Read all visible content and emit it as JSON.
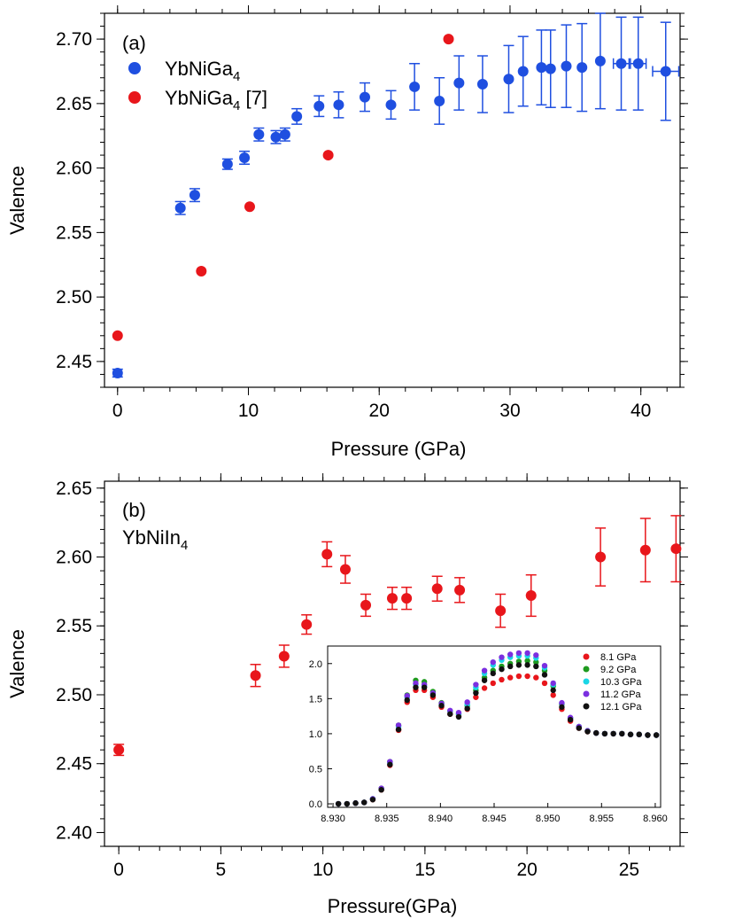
{
  "chart_data": [
    {
      "panel": "a",
      "type": "scatter",
      "panel_label": "(a)",
      "xlabel": "Pressure (GPa)",
      "ylabel": "Valence",
      "xlim": [
        -1,
        43
      ],
      "ylim": [
        2.43,
        2.72
      ],
      "xticks": [
        0,
        10,
        20,
        30,
        40
      ],
      "xtick_labels": [
        "0",
        "10",
        "20",
        "30",
        "40"
      ],
      "yticks": [
        2.45,
        2.5,
        2.55,
        2.6,
        2.65,
        2.7
      ],
      "ytick_labels": [
        "2.45",
        "2.50",
        "2.55",
        "2.60",
        "2.65",
        "2.70"
      ],
      "legend_position": "top-left",
      "series": [
        {
          "name": "YbNiGa",
          "sub": "4",
          "suffix": "",
          "color": "#1f4fe0",
          "x": [
            0.0,
            4.8,
            5.9,
            8.4,
            9.7,
            10.8,
            12.1,
            12.8,
            13.7,
            15.4,
            16.9,
            18.9,
            20.9,
            22.7,
            24.6,
            26.1,
            27.9,
            29.9,
            31.0,
            32.4,
            33.1,
            34.3,
            35.5,
            36.9,
            38.5,
            39.8,
            41.9
          ],
          "y": [
            2.441,
            2.569,
            2.579,
            2.603,
            2.608,
            2.626,
            2.624,
            2.626,
            2.64,
            2.648,
            2.649,
            2.655,
            2.649,
            2.663,
            2.652,
            2.666,
            2.665,
            2.669,
            2.675,
            2.678,
            2.677,
            2.679,
            2.678,
            2.683,
            2.681,
            2.681,
            2.675
          ],
          "yerr": [
            0.003,
            0.005,
            0.005,
            0.004,
            0.005,
            0.005,
            0.005,
            0.005,
            0.006,
            0.008,
            0.01,
            0.011,
            0.011,
            0.018,
            0.018,
            0.021,
            0.022,
            0.026,
            0.027,
            0.029,
            0.03,
            0.032,
            0.034,
            0.037,
            0.036,
            0.036,
            0.038
          ],
          "xerr": [
            0,
            0,
            0,
            0,
            0,
            0,
            0,
            0,
            0,
            0,
            0,
            0,
            0,
            0,
            0,
            0,
            0,
            0,
            0,
            0,
            0,
            0,
            0,
            0,
            0.6,
            0.6,
            1.0
          ]
        },
        {
          "name": "YbNiGa",
          "sub": "4",
          "suffix": " [7]",
          "color": "#e8161b",
          "x": [
            0.0,
            6.4,
            10.1,
            16.1,
            25.3
          ],
          "y": [
            2.47,
            2.52,
            2.57,
            2.61,
            2.7
          ]
        }
      ]
    },
    {
      "panel": "b",
      "type": "scatter",
      "panel_label": "(b)",
      "compound_label": "YbNiIn",
      "compound_sub": "4",
      "xlabel": "Pressure(GPa)",
      "ylabel": "Valence",
      "xlim": [
        -0.7,
        27.5
      ],
      "ylim": [
        2.39,
        2.655
      ],
      "xticks": [
        0,
        5,
        10,
        15,
        20,
        25
      ],
      "xtick_labels": [
        "0",
        "5",
        "10",
        "15",
        "20",
        "25"
      ],
      "yticks": [
        2.4,
        2.45,
        2.5,
        2.55,
        2.6,
        2.65
      ],
      "ytick_labels": [
        "2.40",
        "2.45",
        "2.50",
        "2.55",
        "2.60",
        "2.65"
      ],
      "series": [
        {
          "name": "YbNiIn4",
          "color": "#e8161b",
          "x": [
            0.0,
            6.7,
            8.1,
            9.2,
            10.2,
            11.1,
            12.1,
            13.4,
            14.1,
            15.6,
            16.7,
            18.7,
            20.2,
            23.6,
            25.8,
            27.3
          ],
          "y": [
            2.46,
            2.514,
            2.528,
            2.551,
            2.602,
            2.591,
            2.565,
            2.57,
            2.57,
            2.577,
            2.576,
            2.561,
            2.572,
            2.6,
            2.605,
            2.606
          ],
          "yerr": [
            0.004,
            0.008,
            0.008,
            0.007,
            0.009,
            0.01,
            0.008,
            0.008,
            0.008,
            0.009,
            0.009,
            0.012,
            0.015,
            0.021,
            0.023,
            0.024
          ]
        }
      ]
    },
    {
      "panel": "b-inset",
      "type": "scatter",
      "xlim": [
        8.9295,
        8.9605
      ],
      "ylim": [
        -0.05,
        2.25
      ],
      "xticks": [
        8.93,
        8.935,
        8.94,
        8.945,
        8.95,
        8.955,
        8.96
      ],
      "xtick_labels": [
        "8.930",
        "8.935",
        "8.940",
        "8.945",
        "8.950",
        "8.955",
        "8.960"
      ],
      "yticks": [
        0.0,
        0.5,
        1.0,
        1.5,
        2.0
      ],
      "ytick_labels": [
        "0.0",
        "0.5",
        "1.0",
        "1.5",
        "2.0"
      ],
      "legend_position": "top-right",
      "x": [
        8.9305,
        8.9313,
        8.9321,
        8.9329,
        8.9337,
        8.9345,
        8.9353,
        8.9361,
        8.9369,
        8.9377,
        8.9385,
        8.9393,
        8.9401,
        8.9409,
        8.9417,
        8.9425,
        8.9433,
        8.9441,
        8.9449,
        8.9457,
        8.9465,
        8.9473,
        8.9481,
        8.9489,
        8.9497,
        8.9505,
        8.9513,
        8.9521,
        8.9529,
        8.9537,
        8.9545,
        8.9553,
        8.9561,
        8.9569,
        8.9577,
        8.9585,
        8.9593,
        8.9601
      ],
      "series": [
        {
          "name": "8.1 GPa",
          "color": "#e8161b",
          "y": [
            0.0,
            0.0,
            0.01,
            0.02,
            0.06,
            0.2,
            0.55,
            1.05,
            1.45,
            1.62,
            1.62,
            1.52,
            1.38,
            1.28,
            1.25,
            1.35,
            1.52,
            1.65,
            1.72,
            1.77,
            1.8,
            1.82,
            1.82,
            1.8,
            1.72,
            1.55,
            1.35,
            1.18,
            1.08,
            1.03,
            1.01,
            1.0,
            1.0,
            1.0,
            0.99,
            0.99,
            0.98,
            0.98
          ]
        },
        {
          "name": "9.2 GPa",
          "color": "#1f9a1f",
          "y": [
            0.0,
            0.0,
            0.01,
            0.02,
            0.07,
            0.22,
            0.6,
            1.12,
            1.55,
            1.76,
            1.74,
            1.6,
            1.44,
            1.32,
            1.28,
            1.4,
            1.62,
            1.8,
            1.9,
            1.96,
            2.0,
            2.03,
            2.04,
            2.02,
            1.9,
            1.68,
            1.42,
            1.22,
            1.1,
            1.04,
            1.01,
            1.0,
            1.0,
            1.0,
            0.99,
            0.99,
            0.98,
            0.98
          ]
        },
        {
          "name": "10.3 GPa",
          "color": "#1ad6e6",
          "y": [
            0.0,
            0.0,
            0.01,
            0.02,
            0.07,
            0.21,
            0.58,
            1.1,
            1.52,
            1.7,
            1.68,
            1.56,
            1.42,
            1.32,
            1.28,
            1.42,
            1.66,
            1.86,
            1.98,
            2.05,
            2.09,
            2.11,
            2.11,
            2.08,
            1.94,
            1.7,
            1.43,
            1.22,
            1.1,
            1.04,
            1.01,
            1.0,
            1.0,
            1.0,
            0.99,
            0.99,
            0.98,
            0.98
          ]
        },
        {
          "name": "11.2 GPa",
          "color": "#7b2fe0",
          "y": [
            0.0,
            0.0,
            0.01,
            0.02,
            0.07,
            0.22,
            0.6,
            1.12,
            1.54,
            1.72,
            1.7,
            1.58,
            1.43,
            1.33,
            1.3,
            1.45,
            1.7,
            1.9,
            2.02,
            2.09,
            2.13,
            2.15,
            2.15,
            2.12,
            1.97,
            1.72,
            1.44,
            1.23,
            1.1,
            1.04,
            1.01,
            1.0,
            1.0,
            1.0,
            0.99,
            0.99,
            0.98,
            0.98
          ]
        },
        {
          "name": "12.1 GPa",
          "color": "#111111",
          "y": [
            0.0,
            0.0,
            0.01,
            0.02,
            0.06,
            0.2,
            0.56,
            1.06,
            1.48,
            1.66,
            1.66,
            1.55,
            1.4,
            1.28,
            1.24,
            1.36,
            1.58,
            1.76,
            1.86,
            1.92,
            1.96,
            1.98,
            1.98,
            1.96,
            1.84,
            1.62,
            1.38,
            1.2,
            1.08,
            1.03,
            1.01,
            1.0,
            1.0,
            1.0,
            0.99,
            0.99,
            0.98,
            0.98
          ]
        }
      ]
    }
  ]
}
